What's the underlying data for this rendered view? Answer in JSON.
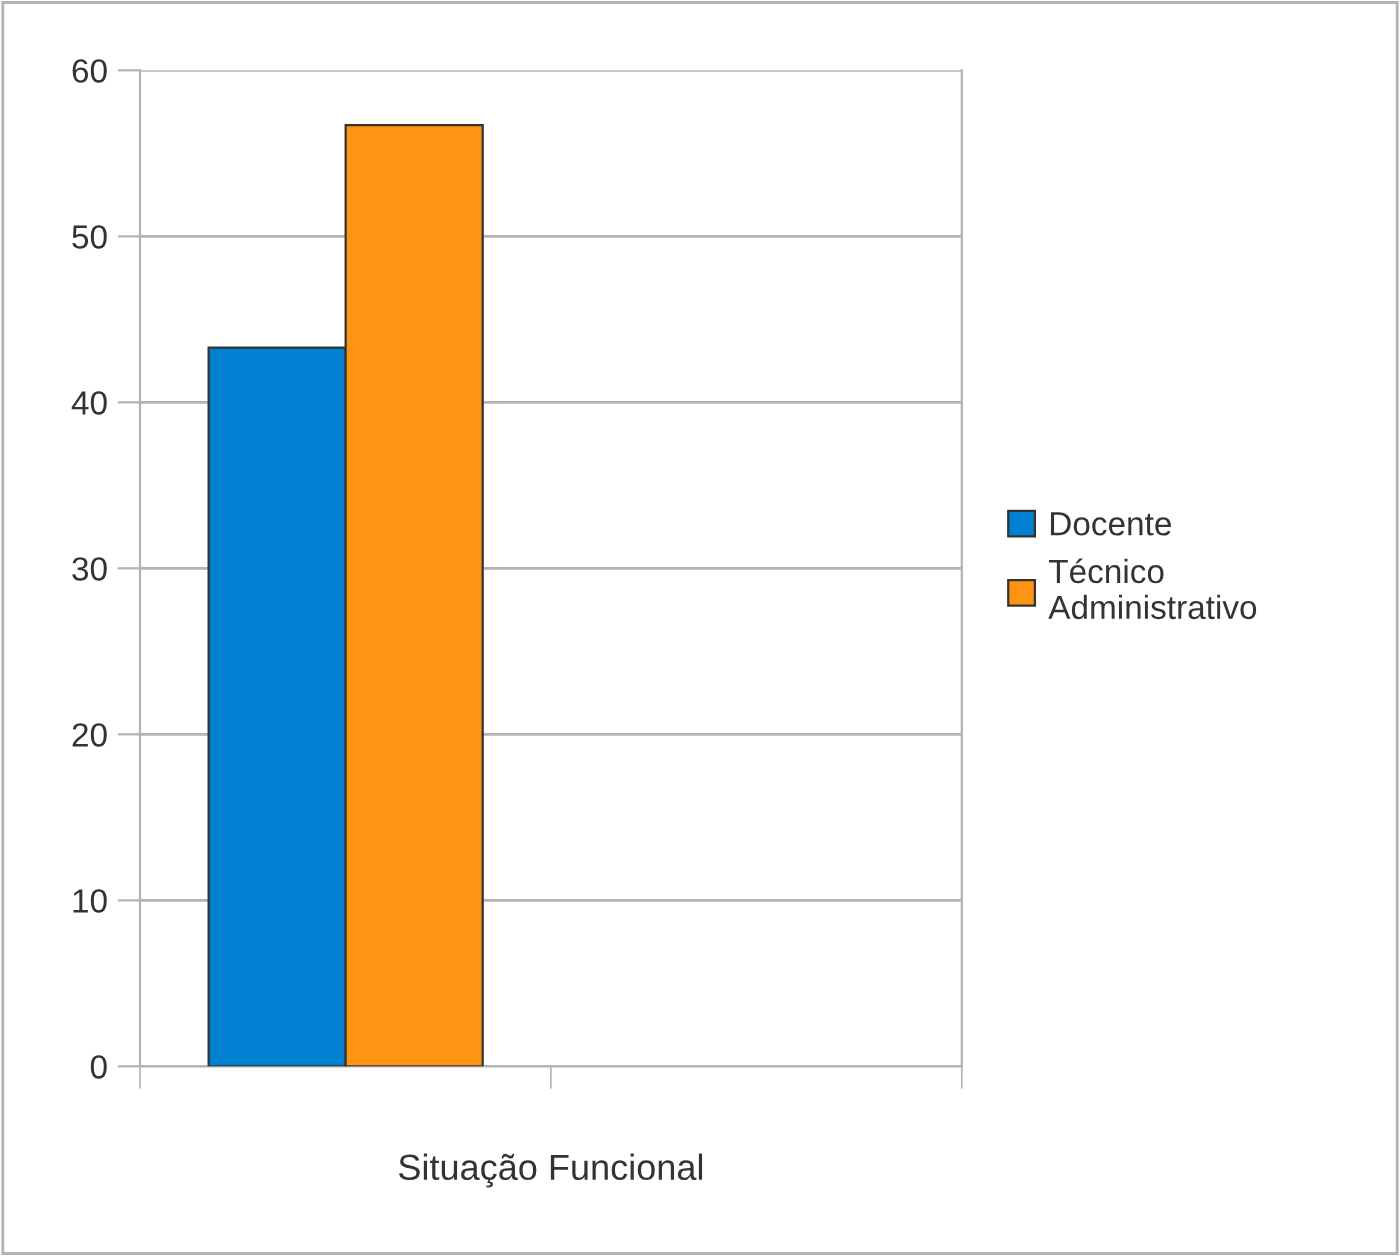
{
  "chart_data": {
    "type": "bar",
    "xlabel": "Situação Funcional",
    "categories": [
      null,
      null
    ],
    "series": [
      {
        "name": "Docente",
        "color": "#0080d0",
        "values": [
          43.3,
          null
        ]
      },
      {
        "name": "Técnico\nAdministrativo",
        "color": "#ff9412",
        "values": [
          56.7,
          null
        ]
      }
    ],
    "ylim": [
      0,
      60
    ],
    "yticks": [
      0,
      10,
      20,
      30,
      40,
      50,
      60
    ],
    "grid": "y",
    "legend": "right"
  }
}
